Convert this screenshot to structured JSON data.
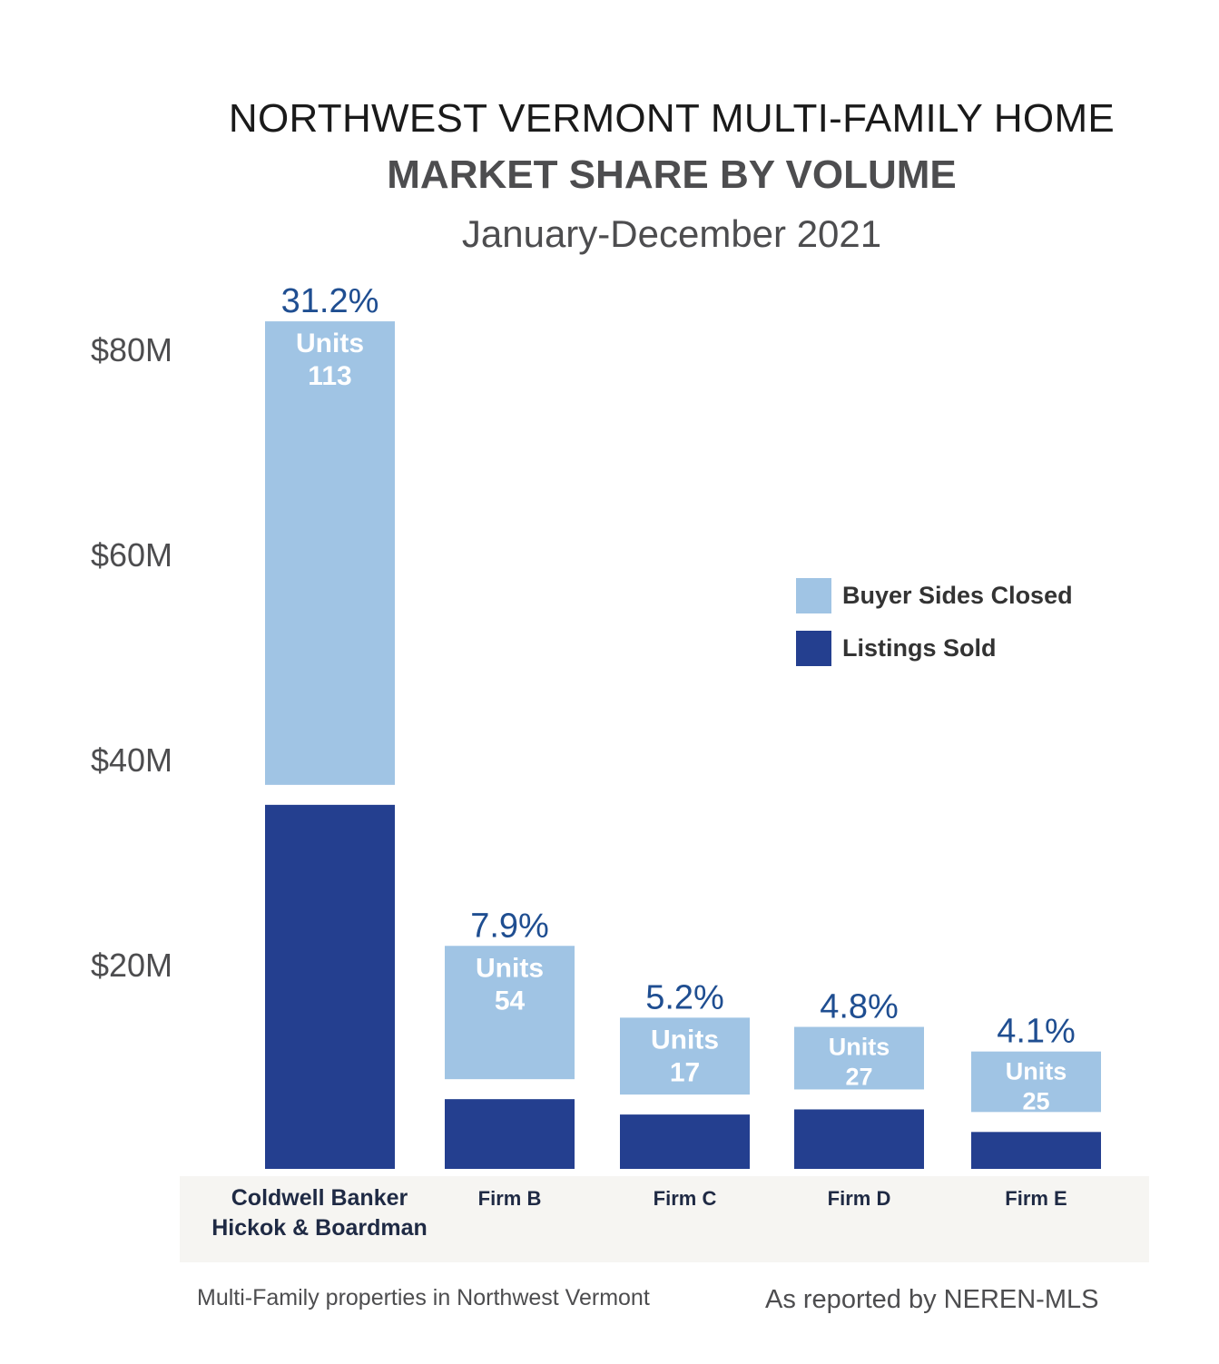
{
  "chart_data": {
    "type": "bar",
    "stacked": true,
    "title": "NORTHWEST VERMONT MULTI-FAMILY HOME",
    "subtitle": "MARKET SHARE BY VOLUME",
    "period": "January-December 2021",
    "categories": [
      [
        "Coldwell Banker",
        "Hickok & Boardman"
      ],
      [
        "Firm B"
      ],
      [
        "Firm C"
      ],
      [
        "Firm D"
      ],
      [
        "Firm E"
      ]
    ],
    "series": [
      {
        "name": "Listings Sold",
        "color": "#243f8f",
        "values": [
          35.5,
          6.8,
          5.3,
          5.8,
          3.6
        ]
      },
      {
        "name": "Buyer Sides Closed",
        "color": "#a0c4e4",
        "values": [
          45.2,
          13.0,
          7.5,
          6.1,
          5.9
        ]
      }
    ],
    "share_labels": [
      "31.2%",
      "7.9%",
      "5.2%",
      "4.8%",
      "4.1%"
    ],
    "units_label": "Units",
    "units": [
      "113",
      "54",
      "17",
      "27",
      "25"
    ],
    "y_ticks": [
      {
        "value": 20,
        "label": "$20M"
      },
      {
        "value": 40,
        "label": "$40M"
      },
      {
        "value": 60,
        "label": "$60M"
      },
      {
        "value": 80,
        "label": "$80M"
      }
    ],
    "ylim": [
      0,
      82
    ],
    "legend": [
      {
        "label": "Buyer Sides Closed",
        "color": "#a0c4e4"
      },
      {
        "label": "Listings Sold",
        "color": "#243f8f"
      }
    ],
    "legend_position": "right"
  },
  "footer": {
    "left": "Multi-Family properties in Northwest Vermont",
    "right": "As reported by NEREN-MLS"
  }
}
